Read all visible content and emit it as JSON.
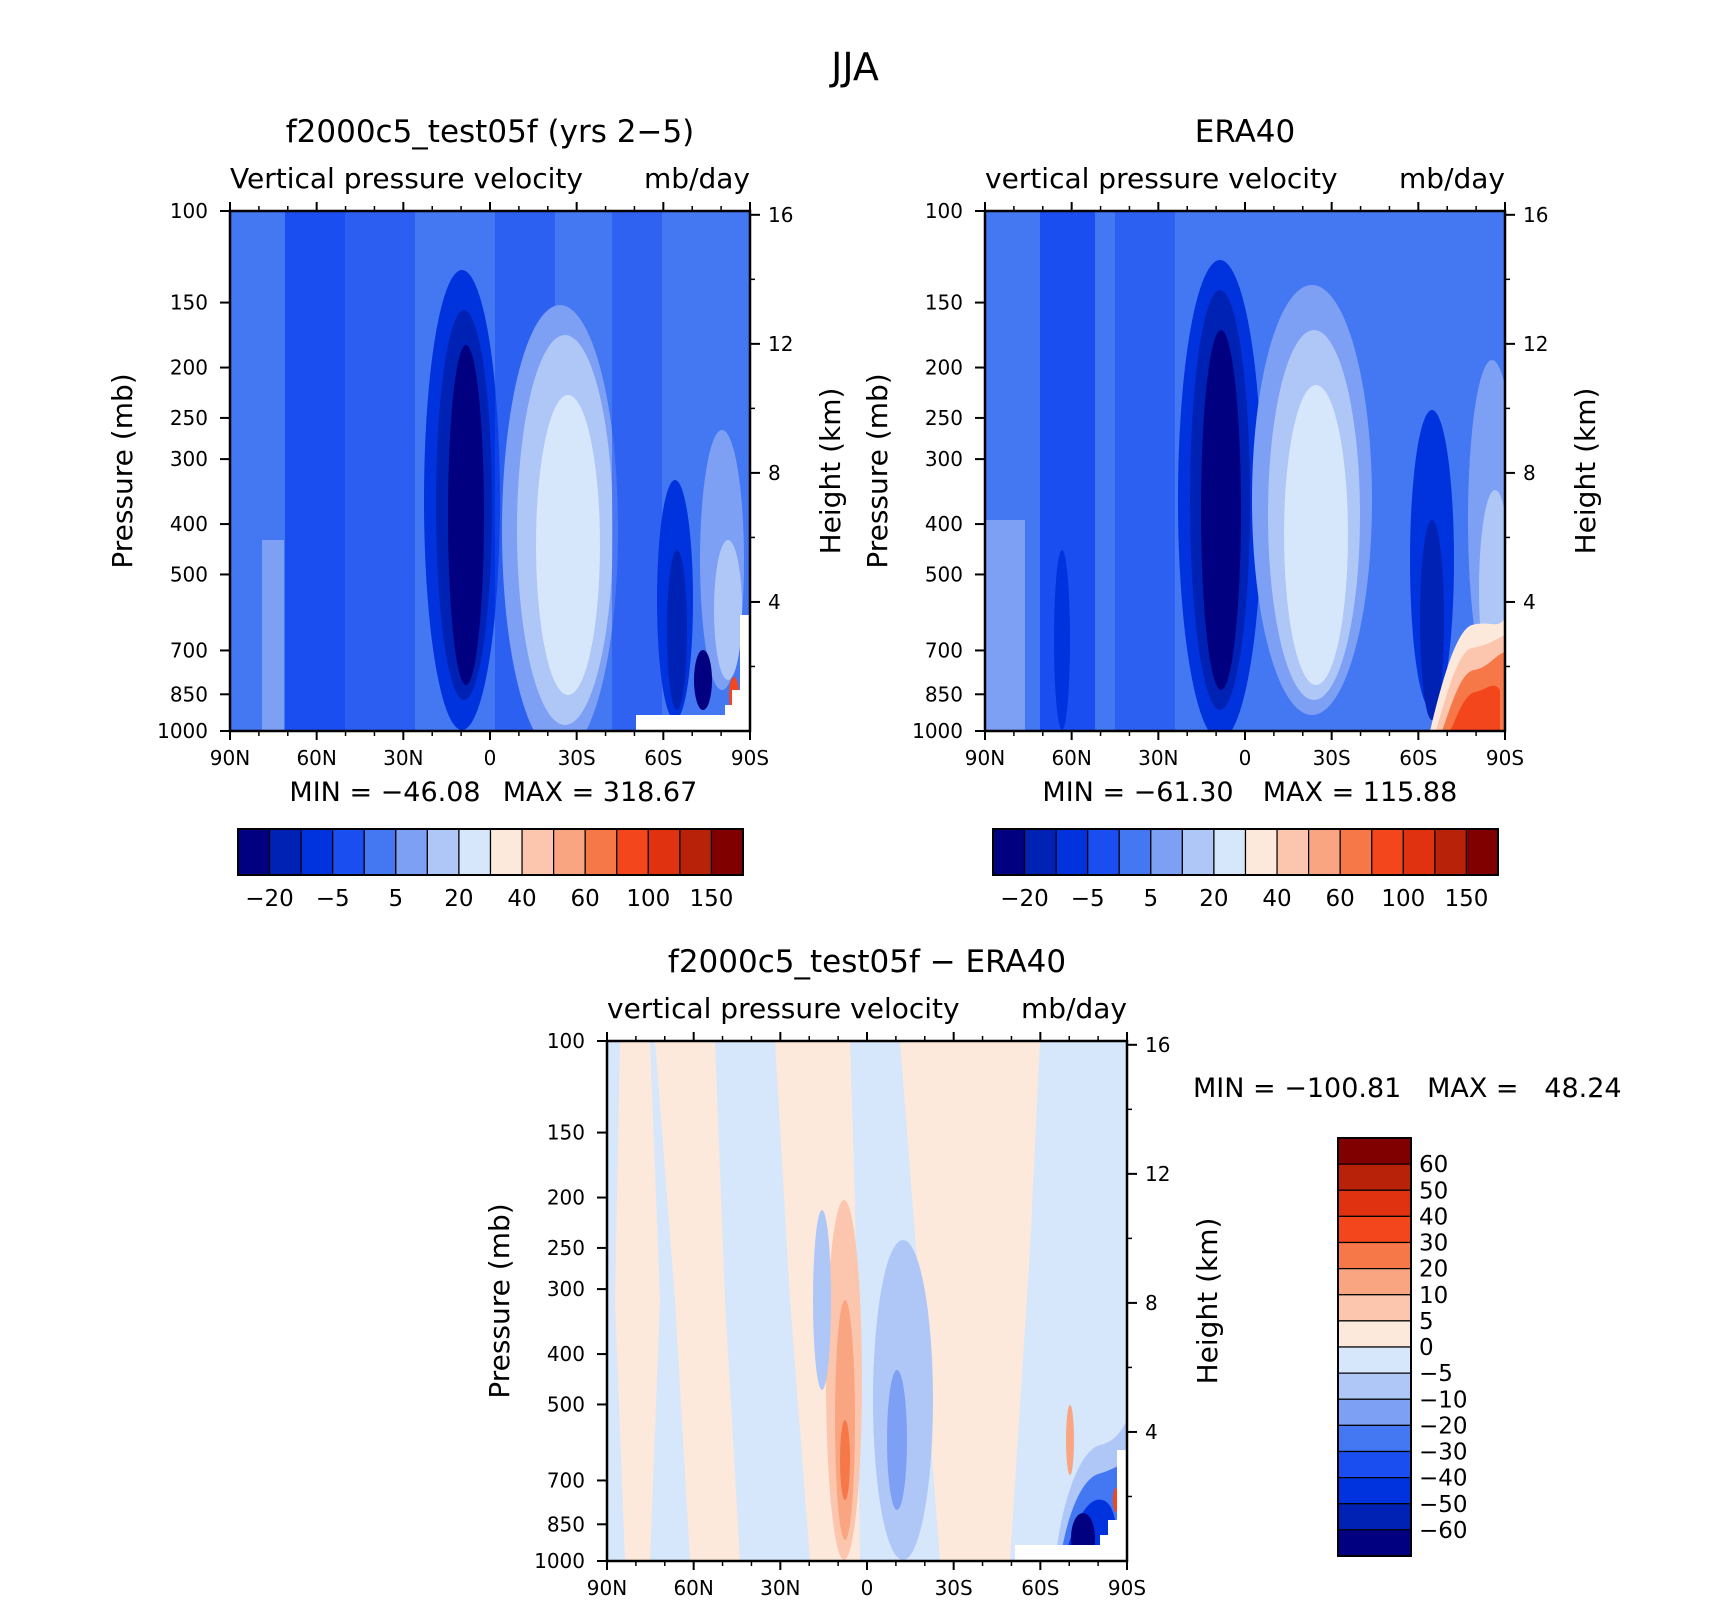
{
  "figure_title": "JJA",
  "chart_data": [
    {
      "type": "heatmap",
      "id": "model",
      "title": "f2000c5_test05f (yrs 2−5)",
      "subtitle_left": "Vertical pressure velocity",
      "units": "mb/day",
      "ylabel": "Pressure (mb)",
      "y2label": "Height (km)",
      "x_ticks": [
        "90N",
        "60N",
        "30N",
        "0",
        "30S",
        "60S",
        "90S"
      ],
      "y_ticks": [
        "100",
        "150",
        "200",
        "250",
        "300",
        "400",
        "500",
        "700",
        "850",
        "1000"
      ],
      "y2_ticks": [
        "16",
        "12",
        "8",
        "4"
      ],
      "min_label": "MIN = −46.08",
      "max_label": "MAX = 318.67",
      "min": -46.08,
      "max": 318.67,
      "colorbar_labels": [
        "−20",
        "−5",
        "5",
        "20",
        "40",
        "60",
        "100",
        "150"
      ]
    },
    {
      "type": "heatmap",
      "id": "obs",
      "title": "ERA40",
      "subtitle_left": "vertical pressure velocity",
      "units": "mb/day",
      "ylabel": "Pressure (mb)",
      "y2label": "Height (km)",
      "x_ticks": [
        "90N",
        "60N",
        "30N",
        "0",
        "30S",
        "60S",
        "90S"
      ],
      "y_ticks": [
        "100",
        "150",
        "200",
        "250",
        "300",
        "400",
        "500",
        "700",
        "850",
        "1000"
      ],
      "y2_ticks": [
        "16",
        "12",
        "8",
        "4"
      ],
      "min_label": "MIN = −61.30",
      "max_label": "MAX = 115.88",
      "min": -61.3,
      "max": 115.88,
      "colorbar_labels": [
        "−20",
        "−5",
        "5",
        "20",
        "40",
        "60",
        "100",
        "150"
      ]
    },
    {
      "type": "heatmap",
      "id": "diff",
      "title": "f2000c5_test05f − ERA40",
      "subtitle_left": "vertical pressure velocity",
      "units": "mb/day",
      "ylabel": "Pressure (mb)",
      "y2label": "Height (km)",
      "x_ticks": [
        "90N",
        "60N",
        "30N",
        "0",
        "30S",
        "60S",
        "90S"
      ],
      "y_ticks": [
        "100",
        "150",
        "200",
        "250",
        "300",
        "400",
        "500",
        "700",
        "850",
        "1000"
      ],
      "y2_ticks": [
        "16",
        "12",
        "8",
        "4"
      ],
      "minmax_label": "MIN = −100.81   MAX =   48.24",
      "min": -100.81,
      "max": 48.24,
      "colorbar_labels": [
        "60",
        "50",
        "40",
        "30",
        "20",
        "10",
        "5",
        "0",
        "−5",
        "−10",
        "−20",
        "−30",
        "−40",
        "−50",
        "−60"
      ]
    }
  ],
  "colors": {
    "absolute_scale": [
      "#000080",
      "#0022b4",
      "#0033dd",
      "#1a4ef0",
      "#4477f2",
      "#7da0f5",
      "#aec7f7",
      "#d6e6fb",
      "#fde9dc",
      "#fcc6ae",
      "#f9a582",
      "#f67848",
      "#f4461c",
      "#e03210",
      "#b82208",
      "#800000"
    ],
    "difference_scale": [
      "#800000",
      "#b82208",
      "#e03210",
      "#f4461c",
      "#f67848",
      "#f9a582",
      "#fcc6ae",
      "#fde9dc",
      "#d6e6fb",
      "#aec7f7",
      "#7da0f5",
      "#4477f2",
      "#1a4ef0",
      "#0033dd",
      "#0022b4",
      "#000080"
    ]
  }
}
